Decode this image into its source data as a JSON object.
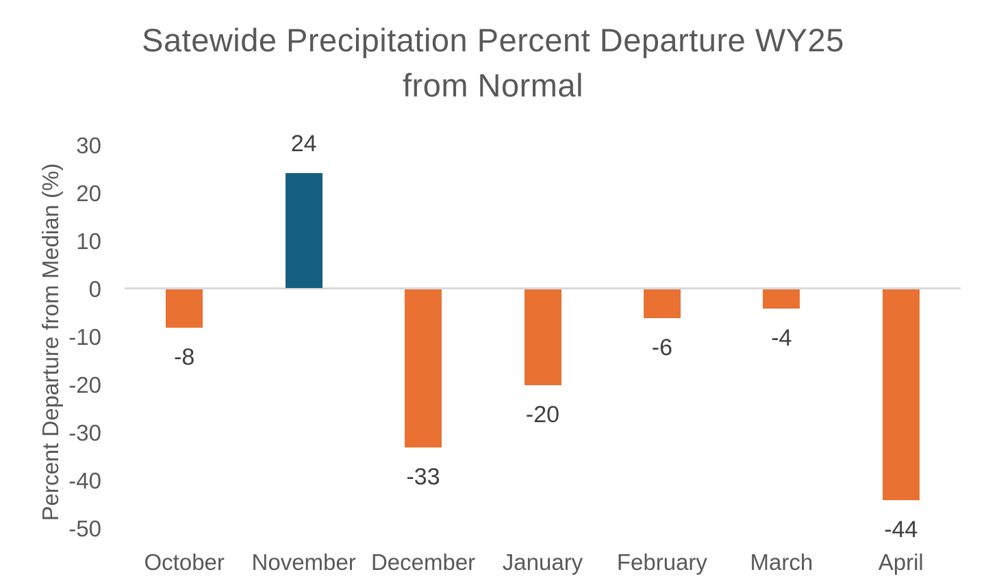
{
  "chart_data": {
    "type": "bar",
    "title": "Satewide Precipitation Percent Departure WY25 from Normal",
    "title_lines": [
      "Satewide Precipitation Percent Departure WY25",
      "from Normal"
    ],
    "xlabel": "",
    "ylabel": "Percent Departure from Median (%)",
    "categories": [
      "October",
      "November",
      "December",
      "January",
      "February",
      "March",
      "April"
    ],
    "values": [
      -8,
      24,
      -33,
      -20,
      -6,
      -4,
      -44
    ],
    "data_labels": [
      "-8",
      "24",
      "-33",
      "-20",
      "-6",
      "-4",
      "-44"
    ],
    "ylim": [
      -50,
      30
    ],
    "ytick_interval": 10,
    "yticks": [
      30,
      20,
      10,
      0,
      -10,
      -20,
      -30,
      -40,
      -50
    ],
    "grid": false,
    "legend": "none",
    "colors": {
      "positive_bar": "#156082",
      "negative_bar": "#E97132",
      "axis_line": "#D9D9D9",
      "axis_text": "#595959",
      "title_text": "#595959",
      "data_label_text": "#3F3F3F",
      "background": "#FFFFFF"
    }
  }
}
